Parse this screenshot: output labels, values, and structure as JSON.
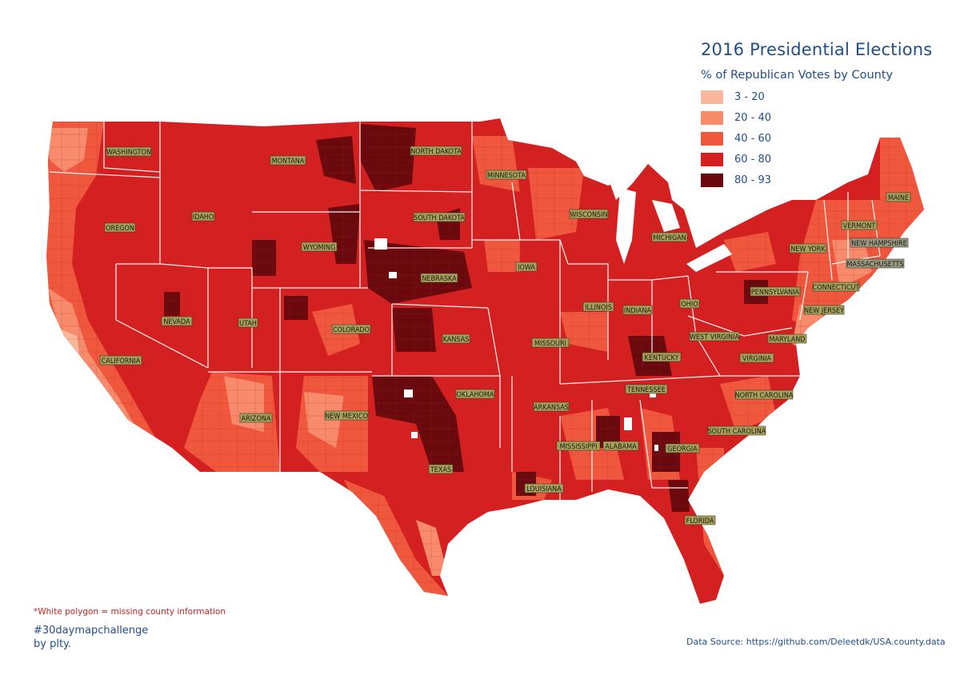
{
  "title": "2016 Presidential Elections",
  "legend": {
    "title": "% of Republican Votes by County",
    "items": [
      {
        "label": "3 - 20",
        "color": "#f9b89c"
      },
      {
        "label": "20 - 40",
        "color": "#f78b6c"
      },
      {
        "label": "40 - 60",
        "color": "#f0583e"
      },
      {
        "label": "60 - 80",
        "color": "#d42020"
      },
      {
        "label": "80 - 93",
        "color": "#6a0a0f"
      }
    ]
  },
  "note": "*White polygon = missing county information",
  "hashtag": "#30daymapchallenge",
  "byline": "by plty.",
  "source": "Data Source: https://github.com/Deleetdk/USA.county.data",
  "states": [
    "WASHINGTON",
    "MONTANA",
    "NORTH DAKOTA",
    "MINNESOTA",
    "OREGON",
    "IDAHO",
    "WYOMING",
    "SOUTH DAKOTA",
    "WISCONSIN",
    "MICHIGAN",
    "MAINE",
    "VERMONT",
    "NEW HAMPSHIRE",
    "MASSACHUSETTS",
    "NEW YORK",
    "CONNECTICUT",
    "NEW JERSEY",
    "PENNSYLVANIA",
    "IOWA",
    "NEBRASKA",
    "ILLINOIS",
    "INDIANA",
    "OHIO",
    "NEVADA",
    "UTAH",
    "COLORADO",
    "KANSAS",
    "MISSOURI",
    "WEST VIRGINIA",
    "MARYLAND",
    "KENTUCKY",
    "VIRGINIA",
    "CALIFORNIA",
    "TENNESSEE",
    "NORTH CAROLINA",
    "OKLAHOMA",
    "ARKANSAS",
    "ARIZONA",
    "NEW MEXICO",
    "SOUTH CAROLINA",
    "MISSISSIPPI",
    "ALABAMA",
    "GEORGIA",
    "TEXAS",
    "LOUISIANA",
    "FLORIDA"
  ]
}
